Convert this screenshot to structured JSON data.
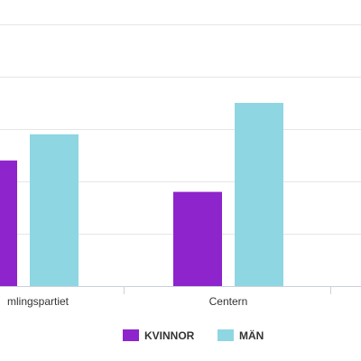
{
  "chart_data": {
    "type": "bar",
    "categories": [
      "Samlingspartiet",
      "Centern"
    ],
    "visible_category_labels": [
      "mlingspartiet",
      "Centern"
    ],
    "series": [
      {
        "name": "KVINNOR",
        "values": [
          24,
          18
        ],
        "color": "#8e24cc"
      },
      {
        "name": "MÄN",
        "values": [
          29,
          35
        ],
        "color": "#8fd6e3"
      }
    ],
    "ylim": [
      0,
      50
    ],
    "grid": true,
    "legend": "bottom-center",
    "title": "",
    "xlabel": "",
    "ylabel": ""
  }
}
